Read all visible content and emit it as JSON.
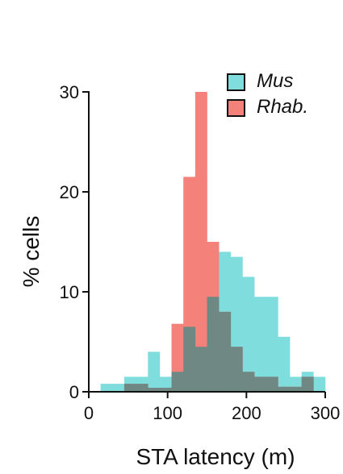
{
  "chart_data": {
    "type": "bar",
    "subtype": "overlaid-histogram",
    "title": "",
    "xlabel": "STA latency (m)",
    "ylabel": "% cells",
    "xlim": [
      0,
      300
    ],
    "ylim": [
      0,
      30
    ],
    "xticks": [
      0,
      100,
      200,
      300
    ],
    "yticks": [
      0,
      10,
      20,
      30
    ],
    "bin_width": 15,
    "grid": false,
    "legend_position": "top-right",
    "overlap_color": "#6f8884",
    "series": [
      {
        "name": "Mus",
        "color": "#7fdedd",
        "bin_starts": [
          15,
          30,
          45,
          60,
          75,
          90,
          105,
          120,
          135,
          150,
          165,
          180,
          195,
          210,
          225,
          240,
          255,
          270,
          285
        ],
        "values": [
          0.8,
          0.8,
          1.5,
          1.5,
          4.0,
          1.5,
          2.0,
          6.5,
          4.5,
          9.5,
          14.0,
          13.5,
          11.5,
          9.5,
          9.5,
          5.5,
          1.5,
          2.0,
          1.5
        ]
      },
      {
        "name": "Rhab.",
        "color": "#f4827a",
        "bin_starts": [
          45,
          60,
          75,
          90,
          105,
          120,
          135,
          150,
          165,
          180,
          195,
          210,
          225,
          240,
          255,
          270
        ],
        "values": [
          0.8,
          0.8,
          0.4,
          0.4,
          6.8,
          21.5,
          30.0,
          15.0,
          8.0,
          4.5,
          2.0,
          1.5,
          1.5,
          0.5,
          0.5,
          1.5
        ]
      }
    ]
  }
}
